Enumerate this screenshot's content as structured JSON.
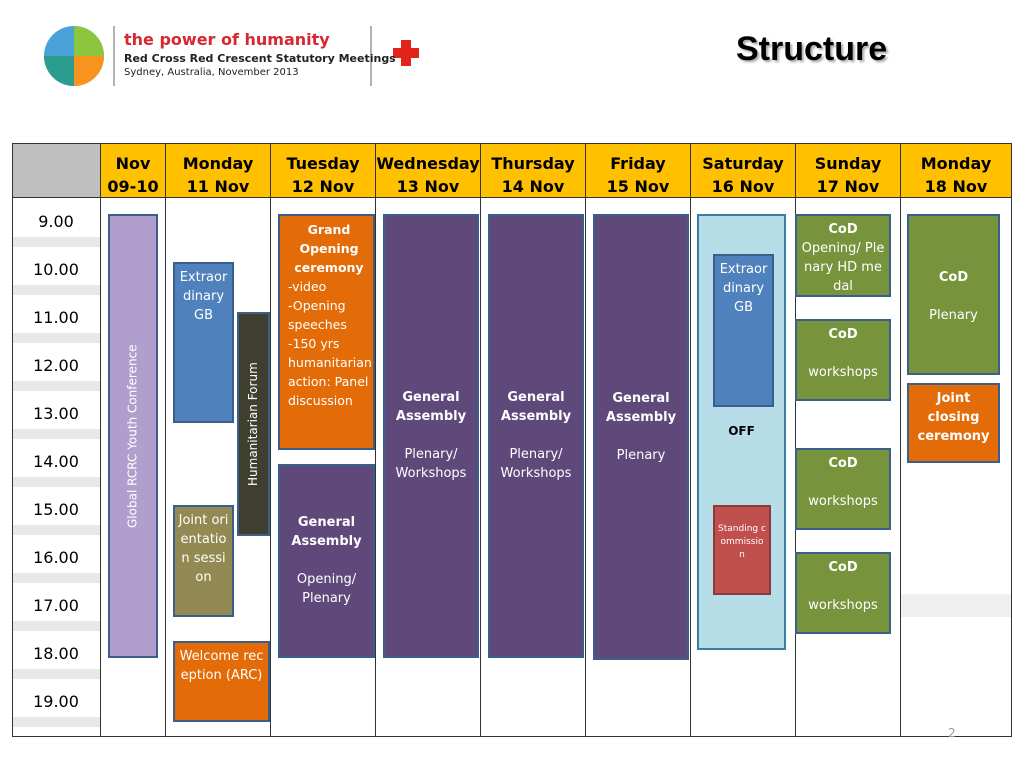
{
  "header": {
    "tagline": "the power of humanity",
    "event": "Red Cross Red Crescent Statutory Meetings",
    "place": "Sydney, Australia, November 2013",
    "title": "Structure"
  },
  "table": {
    "columns": [
      [
        "Nov",
        "09-10"
      ],
      [
        "Monday",
        "11 Nov"
      ],
      [
        "Tuesday",
        "12 Nov"
      ],
      [
        "Wednesday",
        "13 Nov"
      ],
      [
        "Thursday",
        "14 Nov"
      ],
      [
        "Friday",
        "15 Nov"
      ],
      [
        "Saturday",
        "16 Nov"
      ],
      [
        "Sunday",
        "17 Nov"
      ],
      [
        "Monday",
        "18 Nov"
      ]
    ],
    "times": [
      "9.00",
      "10.00",
      "11.00",
      "12.00",
      "13.00",
      "14.00",
      "15.00",
      "16.00",
      "17.00",
      "18.00",
      "19.00"
    ],
    "events": [
      {
        "lines": [
          "Global RCRC Youth Conference"
        ]
      },
      {
        "lines": [
          "Extraordinary GB"
        ]
      },
      {
        "lines": [
          "Humanitarian Forum"
        ]
      },
      {
        "lines": [
          "Joint orientation session"
        ]
      },
      {
        "lines": [
          "Welcome reception (ARC)"
        ]
      },
      {
        "title": "Grand Opening ceremony",
        "lines": [
          "-video",
          "-Opening speeches",
          "-150 yrs humanitarian action: Panel discussion"
        ]
      },
      {
        "title": "General Assembly",
        "lines": [
          "Opening/ Plenary"
        ]
      },
      {
        "title": "General Assembly",
        "lines": [
          "Plenary/ Workshops"
        ]
      },
      {
        "title": "General Assembly",
        "lines": [
          "Plenary/ Workshops"
        ]
      },
      {
        "title": "General Assembly",
        "lines": [
          "Plenary"
        ]
      },
      {
        "title": "OFF"
      },
      {
        "lines": [
          "Extraordinary GB"
        ]
      },
      {
        "lines": [
          "Standing commission"
        ]
      },
      {
        "title": "CoD",
        "lines": [
          "Opening/ Plenary HD medal"
        ]
      },
      {
        "title": "CoD",
        "lines": [
          "workshops"
        ]
      },
      {
        "title": "CoD",
        "lines": [
          "workshops"
        ]
      },
      {
        "title": "CoD",
        "lines": [
          "workshops"
        ]
      },
      {
        "title": "CoD",
        "lines": [
          "Plenary"
        ]
      },
      {
        "title": "Joint closing ceremony"
      }
    ]
  },
  "footer": {
    "page": "2"
  }
}
